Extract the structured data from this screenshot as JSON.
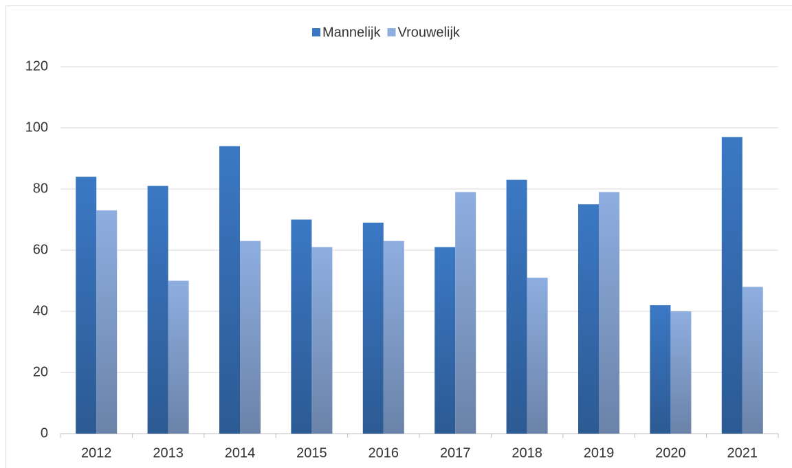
{
  "chart_data": {
    "type": "bar",
    "categories": [
      "2012",
      "2013",
      "2014",
      "2015",
      "2016",
      "2017",
      "2018",
      "2019",
      "2020",
      "2021"
    ],
    "series": [
      {
        "name": "Mannelijk",
        "color": "#3b78c4",
        "values": [
          84,
          81,
          94,
          70,
          69,
          61,
          83,
          75,
          42,
          97
        ]
      },
      {
        "name": "Vrouwelijk",
        "color": "#8eaee0",
        "values": [
          73,
          50,
          63,
          61,
          63,
          79,
          51,
          79,
          40,
          48
        ]
      }
    ],
    "ylim": [
      0,
      120
    ],
    "yticks": [
      0,
      20,
      40,
      60,
      80,
      100,
      120
    ],
    "grid": true,
    "legend": "top"
  }
}
